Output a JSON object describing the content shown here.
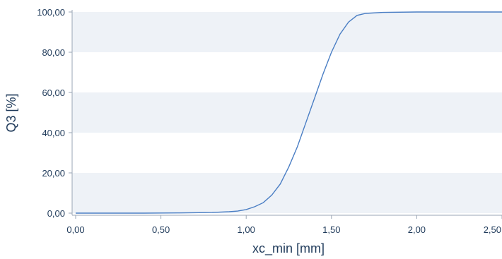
{
  "chart_data": {
    "type": "line",
    "xlabel": "xc_min [mm]",
    "ylabel": "Q3 [%]",
    "xlim": [
      0,
      2.5
    ],
    "ylim": [
      0,
      100
    ],
    "x_ticks": [
      "0,00",
      "0,50",
      "1,00",
      "1,50",
      "2,00",
      "2,50"
    ],
    "y_ticks": [
      "0,00",
      "20,00",
      "40,00",
      "60,00",
      "80,00",
      "100,00"
    ],
    "grid": "alternating horizontal bands",
    "colors": {
      "line": "#4a7ec4",
      "band": "#eef2f7",
      "axis": "#9aa6b4",
      "text": "#1f3a5a"
    },
    "series": [
      {
        "values": [
          [
            0.0,
            0.0
          ],
          [
            0.2,
            0.0
          ],
          [
            0.4,
            0.0
          ],
          [
            0.6,
            0.1
          ],
          [
            0.8,
            0.3
          ],
          [
            0.9,
            0.7
          ],
          [
            0.95,
            1.0
          ],
          [
            1.0,
            1.8
          ],
          [
            1.05,
            3.2
          ],
          [
            1.1,
            5.2
          ],
          [
            1.15,
            9.0
          ],
          [
            1.2,
            14.5
          ],
          [
            1.25,
            23.0
          ],
          [
            1.3,
            33.0
          ],
          [
            1.35,
            45.0
          ],
          [
            1.4,
            57.0
          ],
          [
            1.45,
            69.0
          ],
          [
            1.5,
            80.0
          ],
          [
            1.55,
            89.0
          ],
          [
            1.6,
            95.0
          ],
          [
            1.65,
            98.3
          ],
          [
            1.7,
            99.3
          ],
          [
            1.8,
            99.8
          ],
          [
            2.0,
            100.0
          ],
          [
            2.2,
            100.0
          ],
          [
            2.5,
            100.0
          ]
        ]
      }
    ]
  }
}
